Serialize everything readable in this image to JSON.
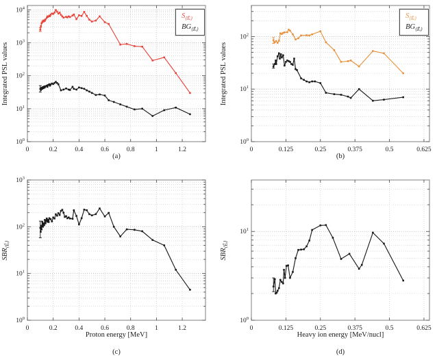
{
  "figure": {
    "background": "#ffffff"
  },
  "colors": {
    "signal_red": "#e8443a",
    "signal_orange": "#e8923f",
    "line_black": "#1a1a1a",
    "grid": "#cccccc",
    "border": "#7d7d7d"
  },
  "chart_data": [
    {
      "id": "a",
      "type": "line",
      "caption": "(a)",
      "xlabel": "",
      "ylabel": "Integrated PSL values",
      "ylabel_sub": "",
      "log_y": true,
      "grid": true,
      "xlim": [
        0,
        1.38
      ],
      "ylim": [
        1,
        13500
      ],
      "x_ticks": [
        0,
        0.2,
        0.4,
        0.6,
        0.8,
        1,
        1.2
      ],
      "x_tick_labels": [
        "0",
        "0.2",
        "0.4",
        "0.6",
        "0.8",
        "1",
        "1.2"
      ],
      "y_tick_exponents": [
        0,
        1,
        2,
        3,
        4
      ],
      "legend": {
        "show": true,
        "position": "top-right",
        "entries": [
          {
            "main": "S",
            "sub": "⟨Ēᵢ⟩",
            "color": "#e8443a"
          },
          {
            "main": "BG",
            "sub": "⟨Ēᵢ⟩",
            "color": "#1a1a1a"
          }
        ]
      },
      "series": [
        {
          "name": "S",
          "color": "#e8443a",
          "x": [
            0.1,
            0.105,
            0.11,
            0.115,
            0.12,
            0.125,
            0.13,
            0.135,
            0.14,
            0.15,
            0.155,
            0.16,
            0.17,
            0.175,
            0.18,
            0.19,
            0.2,
            0.21,
            0.22,
            0.23,
            0.24,
            0.25,
            0.26,
            0.27,
            0.28,
            0.3,
            0.31,
            0.32,
            0.33,
            0.35,
            0.36,
            0.38,
            0.4,
            0.42,
            0.44,
            0.46,
            0.48,
            0.5,
            0.53,
            0.56,
            0.6,
            0.63,
            0.72,
            0.77,
            0.83,
            0.89,
            0.97,
            1.06,
            1.15,
            1.26
          ],
          "y": [
            2500,
            3200,
            3900,
            4200,
            4600,
            4400,
            4800,
            4600,
            5100,
            5700,
            6300,
            6100,
            6600,
            6400,
            7100,
            7700,
            7500,
            8200,
            9800,
            8800,
            7700,
            8200,
            7000,
            6300,
            5800,
            6100,
            5900,
            6300,
            6000,
            6700,
            7200,
            5200,
            6800,
            6500,
            8600,
            6500,
            5000,
            4400,
            4700,
            6300,
            4200,
            3700,
            880,
            920,
            790,
            760,
            290,
            360,
            120,
            30
          ],
          "errorbars": [
            {
              "x": 0.1,
              "lo": 2200,
              "hi": 2900
            }
          ]
        },
        {
          "name": "BG",
          "color": "#1a1a1a",
          "x": [
            0.1,
            0.105,
            0.11,
            0.115,
            0.12,
            0.125,
            0.13,
            0.135,
            0.14,
            0.15,
            0.155,
            0.16,
            0.17,
            0.175,
            0.18,
            0.19,
            0.2,
            0.21,
            0.22,
            0.23,
            0.24,
            0.26,
            0.28,
            0.3,
            0.32,
            0.33,
            0.35,
            0.36,
            0.38,
            0.4,
            0.42,
            0.44,
            0.46,
            0.48,
            0.5,
            0.53,
            0.56,
            0.6,
            0.63,
            0.67,
            0.72,
            0.77,
            0.83,
            0.89,
            0.97,
            1.06,
            1.15,
            1.26
          ],
          "y": [
            40,
            37,
            43,
            40,
            45,
            42,
            47,
            44,
            48,
            50,
            46,
            52,
            55,
            50,
            54,
            58,
            56,
            60,
            65,
            60,
            55,
            36,
            38,
            41,
            38,
            37,
            46,
            40,
            38,
            44,
            42,
            40,
            36,
            33,
            30,
            26,
            27,
            25,
            18,
            16,
            13.5,
            11.5,
            9.5,
            10,
            6,
            9,
            10.8,
            6.8
          ],
          "errorbars": [
            {
              "x": 0.1,
              "lo": 32,
              "hi": 50
            }
          ]
        }
      ]
    },
    {
      "id": "b",
      "type": "line",
      "caption": "(b)",
      "xlabel": "",
      "ylabel": "Integrated PSL values",
      "ylabel_sub": "",
      "log_y": true,
      "grid": true,
      "xlim": [
        0,
        0.645
      ],
      "ylim": [
        1,
        390
      ],
      "x_ticks": [
        0,
        0.125,
        0.25,
        0.375,
        0.5,
        0.625
      ],
      "x_tick_labels": [
        "0",
        "0.125",
        "0.25",
        "0.375",
        "0.5",
        "0.625"
      ],
      "y_tick_exponents": [
        0,
        1,
        2
      ],
      "legend": {
        "show": true,
        "position": "top-right",
        "entries": [
          {
            "main": "S",
            "sub": "⟨Ēᵢ⟩",
            "color": "#e8923f"
          },
          {
            "main": "BG",
            "sub": "⟨Ēᵢ⟩",
            "color": "#1a1a1a"
          }
        ]
      },
      "series": [
        {
          "name": "S",
          "color": "#e8923f",
          "x": [
            0.08,
            0.085,
            0.09,
            0.095,
            0.1,
            0.105,
            0.11,
            0.115,
            0.12,
            0.13,
            0.135,
            0.14,
            0.15,
            0.16,
            0.17,
            0.18,
            0.2,
            0.21,
            0.22,
            0.25,
            0.27,
            0.3,
            0.325,
            0.35,
            0.36,
            0.39,
            0.44,
            0.48,
            0.55
          ],
          "y": [
            85,
            78,
            82,
            76,
            83,
            115,
            112,
            117,
            120,
            121,
            135,
            129,
            110,
            88,
            93,
            105,
            106,
            105,
            110,
            126,
            78,
            55,
            33,
            34,
            35,
            27,
            53,
            48,
            20
          ],
          "errorbars": [
            {
              "x": 0.08,
              "lo": 74,
              "hi": 96
            }
          ]
        },
        {
          "name": "BG",
          "color": "#1a1a1a",
          "x": [
            0.08,
            0.085,
            0.088,
            0.09,
            0.095,
            0.1,
            0.103,
            0.107,
            0.11,
            0.115,
            0.12,
            0.125,
            0.13,
            0.135,
            0.14,
            0.145,
            0.15,
            0.155,
            0.16,
            0.165,
            0.18,
            0.19,
            0.2,
            0.21,
            0.22,
            0.23,
            0.25,
            0.27,
            0.3,
            0.325,
            0.35,
            0.36,
            0.39,
            0.44,
            0.48,
            0.55
          ],
          "y": [
            27,
            30,
            35,
            30,
            42,
            48,
            38,
            46,
            40,
            44,
            28,
            33,
            35,
            34,
            33,
            30,
            29,
            38,
            24,
            23,
            16,
            15,
            14,
            13.5,
            14,
            14,
            13,
            8.5,
            8,
            7.8,
            7.2,
            6.8,
            10,
            6,
            6.3,
            7
          ],
          "errorbars": [
            {
              "x": 0.08,
              "lo": 25,
              "hi": 30
            }
          ]
        }
      ]
    },
    {
      "id": "c",
      "type": "line",
      "caption": "(c)",
      "xlabel": "Proton energy [MeV]",
      "ylabel": "SBR",
      "ylabel_sub": "⟨Ēᵢ⟩",
      "log_y": true,
      "grid": true,
      "xlim": [
        0,
        1.38
      ],
      "ylim": [
        1,
        1000
      ],
      "x_ticks": [
        0,
        0.2,
        0.4,
        0.6,
        0.8,
        1,
        1.2
      ],
      "x_tick_labels": [
        "0",
        "0.2",
        "0.4",
        "0.6",
        "0.8",
        "1",
        "1.2"
      ],
      "y_tick_exponents": [
        0,
        1,
        2,
        3
      ],
      "legend": {
        "show": false,
        "entries": []
      },
      "series": [
        {
          "name": "SBR",
          "color": "#1a1a1a",
          "x": [
            0.1,
            0.103,
            0.107,
            0.11,
            0.115,
            0.12,
            0.125,
            0.13,
            0.135,
            0.14,
            0.145,
            0.15,
            0.155,
            0.16,
            0.165,
            0.17,
            0.18,
            0.19,
            0.2,
            0.21,
            0.22,
            0.23,
            0.24,
            0.25,
            0.26,
            0.27,
            0.28,
            0.29,
            0.3,
            0.31,
            0.32,
            0.33,
            0.35,
            0.36,
            0.38,
            0.4,
            0.42,
            0.44,
            0.46,
            0.48,
            0.5,
            0.53,
            0.56,
            0.6,
            0.63,
            0.67,
            0.72,
            0.77,
            0.83,
            0.89,
            0.97,
            1.06,
            1.15,
            1.26
          ],
          "y": [
            95,
            78,
            105,
            88,
            128,
            100,
            118,
            108,
            140,
            118,
            135,
            150,
            128,
            140,
            126,
            152,
            145,
            130,
            158,
            150,
            185,
            172,
            195,
            178,
            218,
            230,
            200,
            162,
            168,
            152,
            158,
            150,
            148,
            225,
            170,
            112,
            152,
            232,
            225,
            186,
            175,
            186,
            246,
            166,
            198,
            100,
            62,
            88,
            86,
            80,
            52,
            40,
            12,
            4.5
          ],
          "errorbars": [
            {
              "x": 0.1,
              "lo": 58,
              "hi": 132
            }
          ]
        }
      ]
    },
    {
      "id": "d",
      "type": "line",
      "caption": "(d)",
      "xlabel": "Heavy ion energy [MeV/nucl]",
      "ylabel": "SBR",
      "ylabel_sub": "⟨Ēᵢ⟩",
      "log_y": true,
      "grid": true,
      "xlim": [
        0,
        0.645
      ],
      "ylim": [
        1,
        38
      ],
      "x_ticks": [
        0,
        0.125,
        0.25,
        0.375,
        0.5,
        0.625
      ],
      "x_tick_labels": [
        "0",
        "0.125",
        "0.25",
        "0.375",
        "0.5",
        "0.625"
      ],
      "y_tick_exponents": [
        0,
        1
      ],
      "legend": {
        "show": false,
        "entries": []
      },
      "series": [
        {
          "name": "SBR",
          "color": "#1a1a1a",
          "x": [
            0.08,
            0.085,
            0.088,
            0.092,
            0.095,
            0.1,
            0.105,
            0.11,
            0.115,
            0.118,
            0.122,
            0.127,
            0.133,
            0.14,
            0.15,
            0.16,
            0.17,
            0.18,
            0.19,
            0.2,
            0.21,
            0.22,
            0.25,
            0.27,
            0.295,
            0.325,
            0.355,
            0.39,
            0.4,
            0.44,
            0.48,
            0.55
          ],
          "y": [
            2.4,
            2.9,
            2.0,
            2.05,
            2.15,
            2.3,
            2.85,
            2.7,
            2.6,
            3.7,
            3.0,
            4.1,
            4.15,
            3.0,
            3.5,
            5.0,
            6.2,
            6.25,
            6.3,
            6.8,
            7.9,
            10.4,
            11.7,
            11.8,
            8.5,
            4.9,
            5.6,
            3.8,
            4.2,
            9.7,
            7.3,
            2.8
          ],
          "errorbars": [
            {
              "x": 0.08,
              "lo": 2.1,
              "hi": 3.0
            }
          ]
        }
      ]
    }
  ]
}
